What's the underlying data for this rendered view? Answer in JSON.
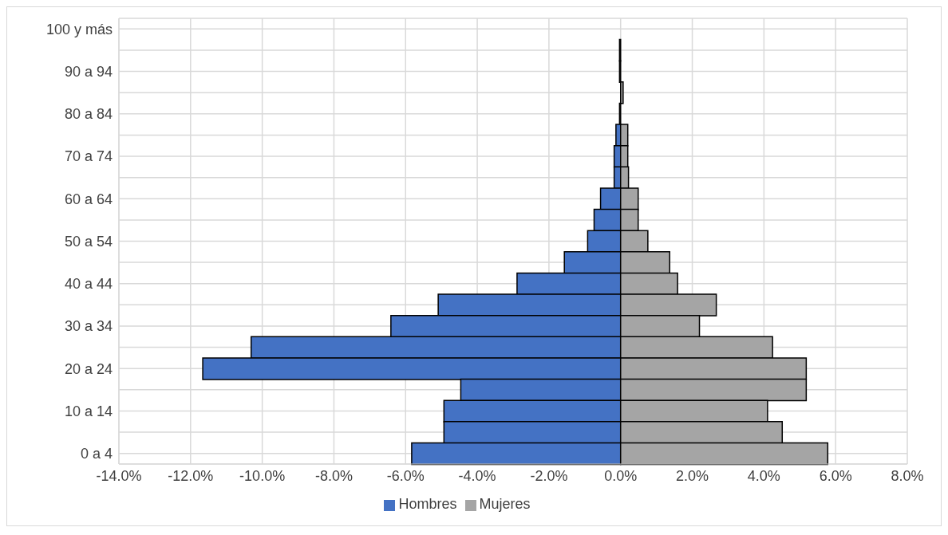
{
  "chart_data": {
    "type": "bar",
    "orientation": "horizontal",
    "stacked": true,
    "categories": [
      "100 y más",
      null,
      "90 a 94",
      null,
      "80 a 84",
      null,
      "70 a 74",
      null,
      "60 a 64",
      null,
      "50 a 54",
      null,
      "40 a 44",
      null,
      "30 a 34",
      null,
      "20 a 24",
      null,
      "10 a 14",
      null,
      "0 a 4"
    ],
    "series": [
      {
        "name": "Hombres",
        "color": "#4472c4",
        "values": [
          0,
          -0.03,
          -0.03,
          0,
          -0.03,
          -0.13,
          -0.18,
          -0.18,
          -0.56,
          -0.74,
          -0.92,
          -1.57,
          -2.89,
          -5.09,
          -6.41,
          -10.31,
          -11.66,
          -4.46,
          -4.93,
          -4.93,
          -5.83
        ]
      },
      {
        "name": "Mujeres",
        "color": "#a5a5a5",
        "values": [
          0,
          0,
          0,
          0.07,
          0,
          0.2,
          0.2,
          0.22,
          0.49,
          0.49,
          0.76,
          1.37,
          1.59,
          2.67,
          2.2,
          4.24,
          5.18,
          5.18,
          4.1,
          4.51,
          5.78
        ]
      }
    ],
    "xlim": [
      -14,
      8
    ],
    "xticks": [
      {
        "value": -14,
        "label": "-14.0%"
      },
      {
        "value": -12,
        "label": "-12.0%"
      },
      {
        "value": -10,
        "label": "-10.0%"
      },
      {
        "value": -8,
        "label": "-8.0%"
      },
      {
        "value": -6,
        "label": "-6.0%"
      },
      {
        "value": -4,
        "label": "-4.0%"
      },
      {
        "value": -2,
        "label": "-2.0%"
      },
      {
        "value": 0,
        "label": "0.0%"
      },
      {
        "value": 2,
        "label": "2.0%"
      },
      {
        "value": 4,
        "label": "4.0%"
      },
      {
        "value": 6,
        "label": "6.0%"
      },
      {
        "value": 8,
        "label": "8.0%"
      }
    ],
    "grid": true,
    "legend": "bottom"
  }
}
